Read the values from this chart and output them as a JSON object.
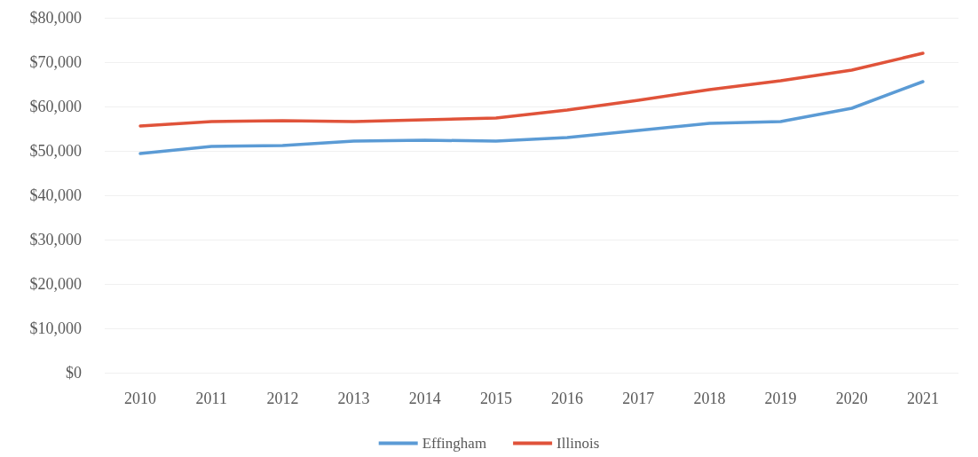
{
  "chart_data": {
    "type": "line",
    "categories": [
      "2010",
      "2011",
      "2012",
      "2013",
      "2014",
      "2015",
      "2016",
      "2017",
      "2018",
      "2019",
      "2020",
      "2021"
    ],
    "series": [
      {
        "name": "Effingham",
        "color": "#5b9bd5",
        "values": [
          49400,
          51000,
          51200,
          52200,
          52400,
          52200,
          53000,
          54600,
          56200,
          56600,
          59600,
          65600
        ]
      },
      {
        "name": "Illinois",
        "color": "#e0533a",
        "values": [
          55600,
          56600,
          56800,
          56600,
          57000,
          57400,
          59200,
          61400,
          63800,
          65800,
          68200,
          72000
        ]
      }
    ],
    "ylim": [
      0,
      80000
    ],
    "yticks": [
      {
        "value": 0,
        "label": "$0"
      },
      {
        "value": 10000,
        "label": "$10,000"
      },
      {
        "value": 20000,
        "label": "$20,000"
      },
      {
        "value": 30000,
        "label": "$30,000"
      },
      {
        "value": 40000,
        "label": "$40,000"
      },
      {
        "value": 50000,
        "label": "$50,000"
      },
      {
        "value": 60000,
        "label": "$60,000"
      },
      {
        "value": 70000,
        "label": "$70,000"
      },
      {
        "value": 80000,
        "label": "$80,000"
      }
    ],
    "grid": "y",
    "legend": "bottom",
    "marker": "none",
    "line_style": "solid"
  }
}
